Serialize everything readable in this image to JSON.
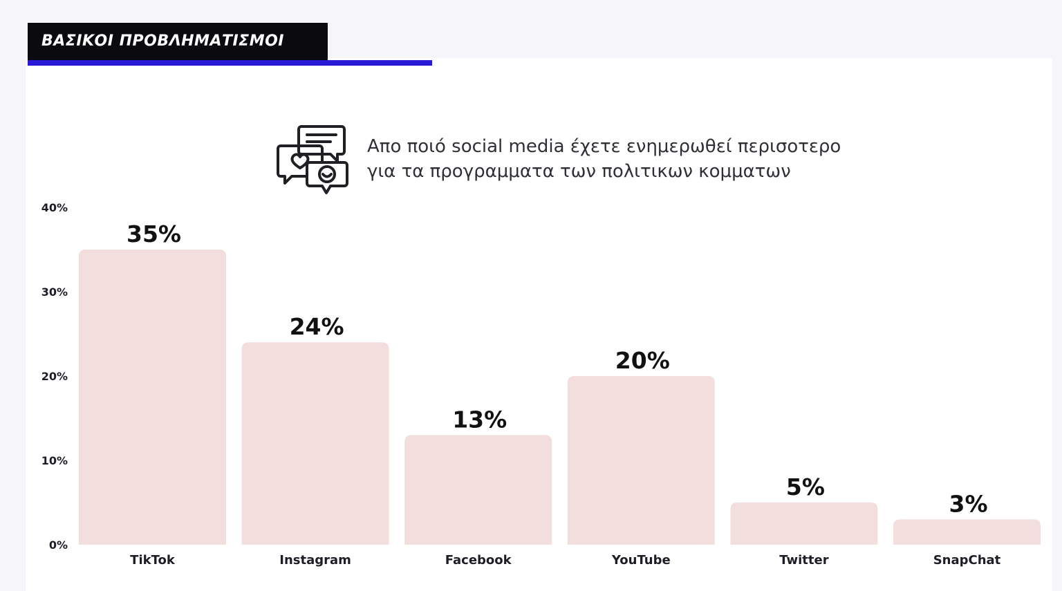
{
  "header": {
    "title": "ΒΑΣΙΚΟΙ ΠΡΟΒΛΗΜΑΤΙΣΜΟΙ"
  },
  "question": {
    "icon": "social-chat-icon",
    "line1": "Απο ποιό social media έχετε ενημερωθεί περισοτερο",
    "line2": "για τα προγραμματα των πολιτικων κομματων"
  },
  "colors": {
    "bar": "#f2dedd",
    "header_bg": "#0b0b0f",
    "accent": "#2a1ad6"
  },
  "chart_data": {
    "type": "bar",
    "categories": [
      "TikTok",
      "Instagram",
      "Facebook",
      "YouTube",
      "Twitter",
      "SnapChat"
    ],
    "values": [
      35,
      24,
      13,
      20,
      5,
      3
    ],
    "value_labels": [
      "35%",
      "24%",
      "13%",
      "20%",
      "5%",
      "3%"
    ],
    "yticks": [
      0,
      10,
      20,
      30,
      40
    ],
    "ytick_labels": [
      "0%",
      "10%",
      "20%",
      "30%",
      "40%"
    ],
    "ylim": [
      0,
      40
    ],
    "title": "",
    "xlabel": "",
    "ylabel": "",
    "grid": false,
    "legend": "none"
  }
}
